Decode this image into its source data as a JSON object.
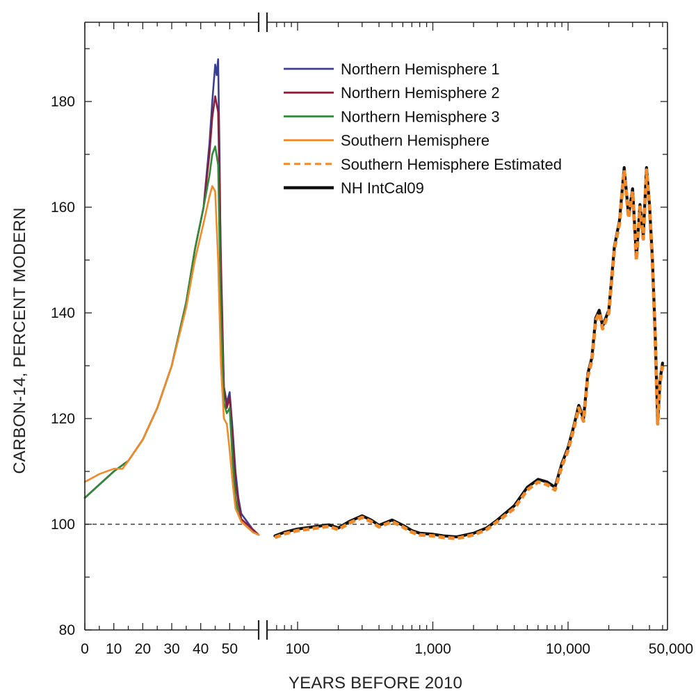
{
  "chart_data": {
    "type": "line",
    "xlabel": "YEARS BEFORE 2010",
    "ylabel": "CARBON-14, PERCENT MODERN",
    "ylim": [
      80,
      195
    ],
    "y_ticks": [
      80,
      100,
      120,
      140,
      160,
      180
    ],
    "y_tick_labels": [
      "80",
      "100",
      "120",
      "140",
      "160",
      "180"
    ],
    "x_axis": {
      "left_segment": {
        "scale": "linear",
        "ticks": [
          0,
          10,
          20,
          30,
          40,
          50
        ],
        "tick_labels": [
          "0",
          "10",
          "20",
          "30",
          "40",
          "50"
        ],
        "range": [
          0,
          60
        ]
      },
      "axis_break": true,
      "right_segment": {
        "scale": "log",
        "ticks": [
          100,
          1000,
          10000,
          50000
        ],
        "tick_labels": [
          "100",
          "1,000",
          "10,000",
          "50,000"
        ],
        "range": [
          60,
          50000
        ]
      }
    },
    "reference_line": {
      "y": 100,
      "style": "dashed"
    },
    "legend_position": "top-center",
    "series": [
      {
        "name": "Northern Hemisphere 1",
        "color": "#3b3f8f",
        "style": "solid",
        "x": [
          0,
          5,
          10,
          15,
          20,
          25,
          30,
          35,
          38,
          41,
          43,
          44,
          45,
          45.5,
          46,
          46.5,
          47,
          48,
          49,
          50,
          51,
          52,
          53,
          54,
          56,
          58,
          60
        ],
        "y": [
          105,
          107.5,
          110,
          112,
          116,
          122,
          130,
          142,
          152,
          160,
          172,
          180,
          187,
          185,
          188,
          170,
          145,
          126,
          123,
          125,
          118,
          110,
          105,
          102,
          100.5,
          99,
          98
        ]
      },
      {
        "name": "Northern Hemisphere 2",
        "color": "#8b1f3a",
        "style": "solid",
        "x": [
          0,
          5,
          10,
          15,
          20,
          25,
          30,
          35,
          38,
          41,
          43,
          44,
          45,
          46,
          47,
          48,
          49,
          50,
          51,
          52,
          53,
          54,
          56,
          58,
          60
        ],
        "y": [
          105,
          107.5,
          110,
          112,
          116,
          122,
          130,
          142,
          152,
          160,
          170,
          177,
          181,
          178,
          150,
          126,
          122,
          124,
          116,
          108,
          104,
          101,
          100,
          99,
          98
        ]
      },
      {
        "name": "Northern Hemisphere 3",
        "color": "#2f8a3a",
        "style": "solid",
        "x": [
          0,
          5,
          10,
          15,
          20,
          25,
          30,
          35,
          38,
          41,
          43,
          44,
          45,
          46,
          47,
          48,
          49,
          50,
          51,
          52,
          53,
          54,
          56,
          58,
          60
        ],
        "y": [
          105,
          107.5,
          110,
          112,
          116,
          122,
          130,
          142,
          152,
          160,
          166,
          170,
          171.5,
          168,
          140,
          123,
          121,
          122,
          112,
          105,
          102,
          100.5,
          99.5,
          98.5,
          98
        ]
      },
      {
        "name": "Southern Hemisphere",
        "color": "#f08a2a",
        "style": "solid",
        "x": [
          0,
          5,
          10,
          13,
          15,
          20,
          25,
          30,
          35,
          38,
          41,
          43,
          44,
          45,
          46,
          47,
          48,
          49,
          50,
          51,
          52,
          54,
          56,
          58,
          60
        ],
        "y": [
          108,
          109.5,
          110.5,
          110.5,
          112,
          116,
          122,
          130,
          141,
          150,
          157,
          162,
          164,
          163,
          150,
          130,
          120,
          119,
          114,
          108,
          103,
          100.5,
          99.5,
          98.5,
          98
        ]
      },
      {
        "name": "Southern Hemisphere Estimated",
        "color": "#f08a2a",
        "style": "dashed",
        "x": [
          68,
          80,
          100,
          130,
          170,
          200,
          240,
          300,
          350,
          400,
          500,
          600,
          700,
          800,
          1000,
          1200,
          1500,
          2000,
          2500,
          3000,
          4000,
          5000,
          6000,
          7000,
          8000,
          9000,
          10000,
          11000,
          12000,
          13000,
          14000,
          15000,
          16000,
          17000,
          18000,
          20000,
          22000,
          24000,
          26000,
          28000,
          30000,
          32000,
          34000,
          36000,
          38000,
          40000,
          42000,
          44000,
          46000,
          48000,
          50000
        ],
        "y": [
          97.5,
          98.2,
          98.8,
          99.2,
          99.6,
          99.0,
          100.2,
          101.3,
          100.5,
          99.5,
          100.5,
          99.5,
          98.5,
          98.0,
          97.8,
          97.5,
          97.3,
          98.0,
          99.0,
          100.5,
          103,
          106.5,
          108,
          107.5,
          106.5,
          111,
          114,
          118,
          122,
          119.5,
          128,
          131,
          138.5,
          140,
          137,
          140,
          152,
          157,
          167,
          158,
          163,
          150,
          160,
          154,
          167,
          160,
          150,
          136,
          119,
          127,
          130
        ]
      },
      {
        "name": "NH IntCal09",
        "color": "#111111",
        "style": "solid",
        "x": [
          68,
          80,
          100,
          130,
          170,
          200,
          240,
          300,
          350,
          400,
          500,
          600,
          700,
          800,
          1000,
          1200,
          1500,
          2000,
          2500,
          3000,
          4000,
          5000,
          6000,
          7000,
          8000,
          9000,
          10000,
          11000,
          12000,
          13000,
          14000,
          15000,
          16000,
          17000,
          18000,
          20000,
          22000,
          24000,
          26000,
          28000,
          30000,
          32000,
          34000,
          36000,
          38000,
          40000,
          42000,
          44000,
          46000,
          48000,
          50000
        ],
        "y": [
          97.8,
          98.5,
          99.1,
          99.5,
          99.9,
          99.3,
          100.5,
          101.6,
          100.8,
          99.8,
          100.8,
          99.8,
          98.8,
          98.3,
          98.1,
          97.8,
          97.6,
          98.3,
          99.3,
          100.8,
          103.5,
          107,
          108.5,
          108,
          107,
          111.5,
          114.5,
          118.5,
          122.5,
          120,
          128.5,
          131.5,
          139,
          140.5,
          137.5,
          140.5,
          152.5,
          157.5,
          167.5,
          158.5,
          163.5,
          150.5,
          160.5,
          154.5,
          167.5,
          160.5,
          150.5,
          136.5,
          119.5,
          127.5,
          130.5
        ]
      }
    ]
  }
}
